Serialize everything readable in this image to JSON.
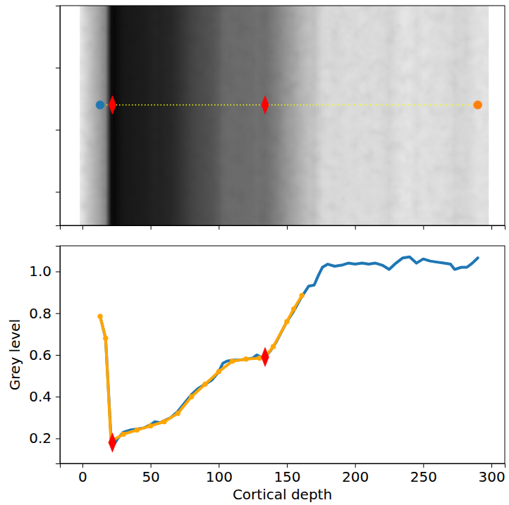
{
  "chart_data": [
    {
      "type": "image",
      "tick_labels": false,
      "xlim": [
        -16.5,
        309.8
      ],
      "xticks": [
        0,
        50,
        100,
        150,
        200,
        250,
        300
      ],
      "ylim": [
        354,
        0
      ],
      "yticks": [
        0,
        100,
        200,
        300
      ],
      "extent": [
        -2,
        298
      ],
      "series": [
        {
          "type": "line",
          "color": "#ffff00",
          "line_style": "dotted",
          "x": [
            13,
            290
          ],
          "values": [
            160,
            160
          ]
        },
        {
          "type": "scatter",
          "color": "#1f77b4",
          "marker": "circle",
          "x": [
            13
          ],
          "values": [
            160
          ]
        },
        {
          "type": "scatter",
          "color": "#ff0000",
          "marker": "diamond",
          "x": [
            22,
            134
          ],
          "values": [
            160,
            160
          ]
        },
        {
          "type": "scatter",
          "color": "#ff7f0e",
          "marker": "circle",
          "x": [
            290
          ],
          "values": [
            160
          ]
        }
      ]
    },
    {
      "type": "line",
      "x_label": "Cortical depth",
      "y_label": "Grey level",
      "xlim": [
        -16.5,
        309.8
      ],
      "xticks": [
        0,
        50,
        100,
        150,
        200,
        250,
        300
      ],
      "ylim": [
        0.08,
        1.123
      ],
      "yticks": [
        0.2,
        0.4,
        0.6,
        0.8,
        {
          "value": 1,
          "label": "1.0"
        }
      ],
      "series": [
        {
          "type": "line",
          "color": "#1f77b4",
          "x": [
            13,
            17,
            21,
            23,
            26,
            30,
            35,
            40,
            45,
            50,
            53,
            57,
            60,
            65,
            70,
            75,
            80,
            85,
            90,
            95,
            100,
            103,
            106,
            110,
            115,
            120,
            125,
            128,
            131,
            134,
            138,
            142,
            146,
            150,
            155,
            160,
            163,
            166,
            170,
            173,
            176,
            180,
            185,
            190,
            195,
            200,
            205,
            210,
            215,
            220,
            225,
            230,
            235,
            240,
            245,
            250,
            255,
            260,
            265,
            270,
            273,
            278,
            282,
            286,
            290
          ],
          "values": [
            0.785,
            0.68,
            0.2,
            0.17,
            0.2,
            0.23,
            0.24,
            0.245,
            0.25,
            0.265,
            0.28,
            0.275,
            0.285,
            0.3,
            0.33,
            0.37,
            0.41,
            0.44,
            0.46,
            0.48,
            0.52,
            0.56,
            0.57,
            0.575,
            0.575,
            0.58,
            0.585,
            0.6,
            0.59,
            0.59,
            0.62,
            0.66,
            0.71,
            0.76,
            0.81,
            0.87,
            0.9,
            0.93,
            0.935,
            0.98,
            1.02,
            1.035,
            1.025,
            1.03,
            1.04,
            1.035,
            1.04,
            1.035,
            1.04,
            1.03,
            1.01,
            1.04,
            1.065,
            1.07,
            1.04,
            1.06,
            1.05,
            1.045,
            1.04,
            1.035,
            1.01,
            1.02,
            1.02,
            1.04,
            1.065
          ]
        },
        {
          "type": "line",
          "color": "#ffa500",
          "marker": "circle",
          "x": [
            13,
            17,
            21,
            22,
            30,
            40,
            50,
            60,
            70,
            80,
            90,
            100,
            110,
            120,
            130,
            134,
            140,
            150,
            155,
            161
          ],
          "values": [
            0.785,
            0.68,
            0.18,
            0.19,
            0.22,
            0.24,
            0.26,
            0.28,
            0.32,
            0.4,
            0.46,
            0.52,
            0.57,
            0.58,
            0.585,
            0.59,
            0.64,
            0.76,
            0.82,
            0.885
          ]
        },
        {
          "type": "scatter",
          "color": "#ff0000",
          "marker": "diamond",
          "x": [
            22,
            134
          ],
          "values": [
            0.18,
            0.59
          ]
        }
      ]
    }
  ]
}
